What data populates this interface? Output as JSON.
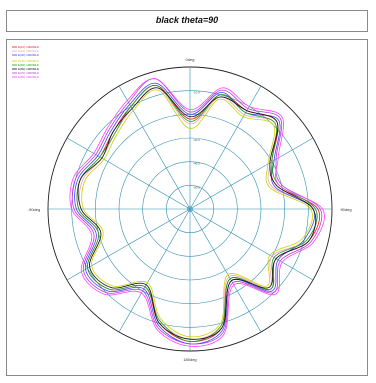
{
  "title": "black theta=90",
  "chart_data": {
    "type": "polar-line",
    "title": "black theta=90",
    "angle_labels": {
      "top": "0deg",
      "right": "90deg",
      "bottom": "180deg",
      "left": "-90deg"
    },
    "ring_labels": [
      "-50.0",
      "-40.0",
      "-30.0",
      "-20.0",
      "-10.0"
    ],
    "r_range": [
      -60,
      0
    ],
    "rings": [
      -50,
      -40,
      -30,
      -20,
      -10
    ],
    "spokes_every_deg": 30,
    "angles_deg": [
      0,
      15,
      30,
      45,
      60,
      75,
      90,
      105,
      120,
      135,
      150,
      165,
      180,
      195,
      210,
      225,
      240,
      255,
      270,
      285,
      300,
      315,
      330,
      345
    ],
    "series": [
      {
        "name": "E(10) 1000MHz",
        "color": "#e0182c",
        "values": [
          -22,
          -10,
          -12,
          -8,
          -20,
          -22,
          -6,
          -8,
          -18,
          -12,
          -26,
          -8,
          -4,
          -10,
          -22,
          -12,
          -10,
          -20,
          -13,
          -12,
          -16,
          -14,
          -10,
          -6
        ]
      },
      {
        "name": "E(20) 1000MHz",
        "color": "#f2a0b8",
        "values": [
          -24,
          -11,
          -14,
          -9,
          -21,
          -24,
          -7,
          -9,
          -20,
          -13,
          -27,
          -9,
          -5,
          -11,
          -23,
          -13,
          -11,
          -21,
          -14,
          -13,
          -17,
          -15,
          -11,
          -7
        ]
      },
      {
        "name": "E(30) 1000MHz",
        "color": "#4040ff",
        "values": [
          -20,
          -9,
          -13,
          -7,
          -19,
          -23,
          -8,
          -10,
          -17,
          -11,
          -25,
          -7,
          -3,
          -9,
          -21,
          -11,
          -9,
          -19,
          -12,
          -11,
          -15,
          -13,
          -9,
          -5
        ]
      },
      {
        "name": "E(40) 1000MHz",
        "color": "#c8d400",
        "values": [
          -26,
          -12,
          -15,
          -10,
          -22,
          -25,
          -9,
          -11,
          -21,
          -14,
          -28,
          -10,
          -6,
          -12,
          -24,
          -14,
          -12,
          -22,
          -15,
          -14,
          -18,
          -16,
          -12,
          -8
        ]
      },
      {
        "name": "E(50) 1000MHz",
        "color": "#20a020",
        "values": [
          -23,
          -10,
          -13,
          -9,
          -20,
          -21,
          -7,
          -9,
          -19,
          -12,
          -26,
          -9,
          -4,
          -11,
          -22,
          -12,
          -10,
          -20,
          -13,
          -12,
          -16,
          -15,
          -10,
          -6
        ]
      },
      {
        "name": "E(60) 1000MHz",
        "color": "#111111",
        "values": [
          -21,
          -11,
          -12,
          -8,
          -21,
          -22,
          -8,
          -8,
          -18,
          -13,
          -25,
          -8,
          -5,
          -10,
          -23,
          -13,
          -11,
          -21,
          -14,
          -12,
          -17,
          -14,
          -11,
          -7
        ]
      },
      {
        "name": "E(70) 1000MHz",
        "color": "#b040d0",
        "values": [
          -19,
          -8,
          -11,
          -6,
          -18,
          -20,
          -5,
          -7,
          -16,
          -10,
          -24,
          -6,
          -3,
          -8,
          -20,
          -10,
          -8,
          -18,
          -11,
          -10,
          -14,
          -12,
          -8,
          -3
        ]
      },
      {
        "name": "E(80) 1000MHz",
        "color": "#ff40ff",
        "values": [
          -18,
          -7,
          -10,
          -5,
          -17,
          -21,
          -4,
          -6,
          -15,
          -9,
          -23,
          -5,
          -2,
          -7,
          -19,
          -9,
          -7,
          -17,
          -10,
          -9,
          -13,
          -11,
          -7,
          -3
        ]
      }
    ]
  }
}
